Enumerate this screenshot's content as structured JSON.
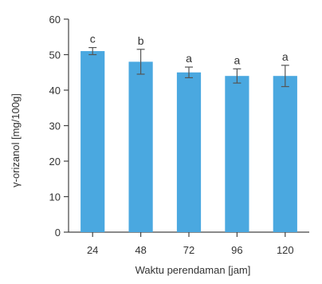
{
  "chart_data": {
    "type": "bar",
    "title": "",
    "xlabel": "Waktu perendaman [jam]",
    "ylabel": "γ-orizanol [mg/100g]",
    "categories": [
      "24",
      "48",
      "72",
      "96",
      "120"
    ],
    "values": [
      51,
      48,
      45,
      44,
      44
    ],
    "error": [
      1,
      3.5,
      1.5,
      2,
      3
    ],
    "significance_labels": [
      "c",
      "b",
      "a",
      "a",
      "a"
    ],
    "ylim": [
      0,
      60
    ],
    "yticks": [
      "0",
      "10",
      "20",
      "30",
      "40",
      "50",
      "60"
    ],
    "grid": false,
    "bar_color": "#4aa8e0",
    "error_color": "#555555"
  }
}
